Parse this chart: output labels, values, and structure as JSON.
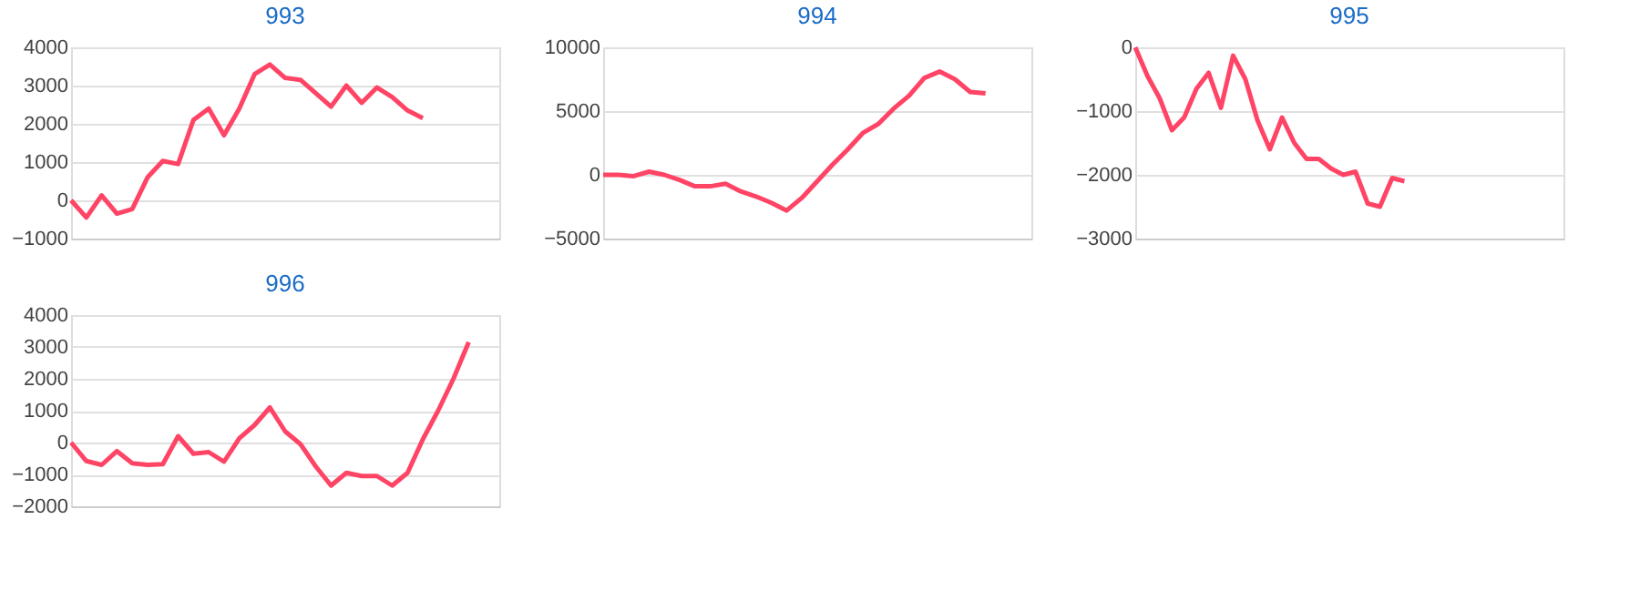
{
  "chart_data": [
    {
      "type": "line",
      "title": "993",
      "color": "#ff4466",
      "grid": "y",
      "tick_labels": "y",
      "ylim": [
        -1000,
        4000
      ],
      "yticks": [
        -1000,
        0,
        1000,
        2000,
        3000,
        4000
      ],
      "categories": [
        null,
        null,
        null,
        null,
        null,
        null,
        null,
        null,
        null,
        null,
        null,
        null,
        null,
        null,
        null,
        null,
        null,
        null,
        null,
        null,
        null,
        null,
        null,
        null,
        null,
        null,
        null,
        null,
        null
      ],
      "values": [
        0,
        -450,
        130,
        -350,
        -230,
        600,
        1030,
        950,
        2100,
        2400,
        1700,
        2400,
        3300,
        3550,
        3200,
        3150,
        2800,
        2450,
        3000,
        2550,
        2950,
        2700,
        2350,
        2150,
        null,
        null,
        null,
        null,
        null
      ]
    },
    {
      "type": "line",
      "title": "994",
      "color": "#ff4466",
      "grid": "y",
      "tick_labels": "y",
      "ylim": [
        -5000,
        10000
      ],
      "yticks": [
        -5000,
        0,
        5000,
        10000
      ],
      "categories": [
        null,
        null,
        null,
        null,
        null,
        null,
        null,
        null,
        null,
        null,
        null,
        null,
        null,
        null,
        null,
        null,
        null,
        null,
        null,
        null,
        null,
        null,
        null,
        null,
        null,
        null,
        null,
        null,
        null
      ],
      "values": [
        0,
        0,
        -100,
        250,
        0,
        -400,
        -900,
        -900,
        -700,
        -1300,
        -1700,
        -2200,
        -2800,
        -1800,
        -500,
        800,
        2000,
        3300,
        4000,
        5200,
        6200,
        7600,
        8100,
        7500,
        6500,
        6400,
        null,
        null,
        null
      ]
    },
    {
      "type": "line",
      "title": "995",
      "color": "#ff4466",
      "grid": "y",
      "tick_labels": "y",
      "ylim": [
        -3000,
        0
      ],
      "yticks": [
        -3000,
        -2000,
        -1000,
        0
      ],
      "categories": [
        null,
        null,
        null,
        null,
        null,
        null,
        null,
        null,
        null,
        null,
        null,
        null,
        null,
        null,
        null,
        null,
        null,
        null,
        null,
        null,
        null,
        null,
        null,
        null,
        null,
        null,
        null,
        null,
        null,
        null,
        null,
        null,
        null,
        null,
        null,
        null
      ],
      "values": [
        0,
        -450,
        -800,
        -1300,
        -1100,
        -650,
        -400,
        -950,
        -130,
        -500,
        -1150,
        -1600,
        -1100,
        -1500,
        -1750,
        -1750,
        -1900,
        -2000,
        -1950,
        -2450,
        -2500,
        -2050,
        -2100,
        null,
        null,
        null,
        null,
        null,
        null,
        null,
        null,
        null,
        null,
        null,
        null,
        null
      ]
    },
    {
      "type": "line",
      "title": "996",
      "color": "#ff4466",
      "grid": "y",
      "tick_labels": "y",
      "ylim": [
        -2000,
        4000
      ],
      "yticks": [
        -2000,
        -1000,
        0,
        1000,
        2000,
        3000,
        4000
      ],
      "categories": [
        null,
        null,
        null,
        null,
        null,
        null,
        null,
        null,
        null,
        null,
        null,
        null,
        null,
        null,
        null,
        null,
        null,
        null,
        null,
        null,
        null,
        null,
        null,
        null,
        null,
        null,
        null,
        null,
        null
      ],
      "values": [
        0,
        -580,
        -700,
        -270,
        -650,
        -700,
        -680,
        200,
        -350,
        -300,
        -600,
        130,
        550,
        1100,
        350,
        -50,
        -750,
        -1350,
        -950,
        -1050,
        -1050,
        -1350,
        -950,
        100,
        1000,
        2000,
        3150,
        null,
        null
      ]
    }
  ]
}
